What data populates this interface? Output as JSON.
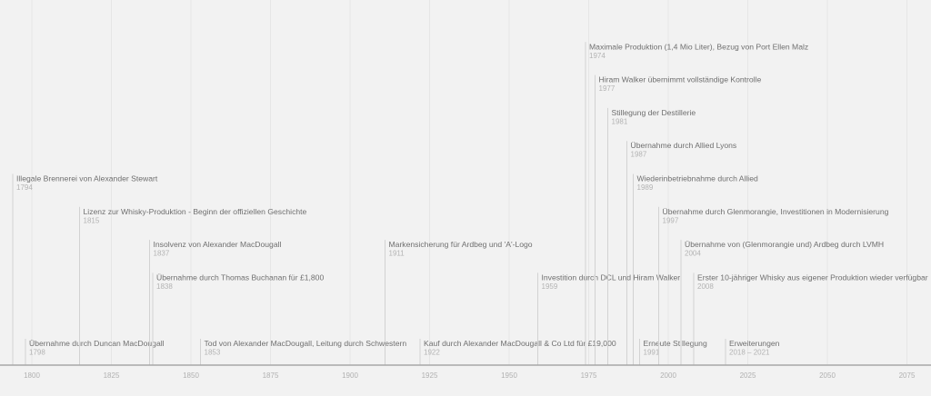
{
  "chart_data": {
    "type": "timeline",
    "xlim": [
      1790,
      2081
    ],
    "ticks": [
      1800,
      1825,
      1850,
      1875,
      1900,
      1925,
      1950,
      1975,
      2000,
      2025,
      2050,
      2075
    ],
    "grid": true,
    "events": [
      {
        "year": 1794,
        "label": "Illegale Brennerei von Alexander Stewart",
        "date_text": "1794",
        "level": 5
      },
      {
        "year": 1798,
        "label": "Übernahme durch Duncan MacDougall",
        "date_text": "1798",
        "level": 0
      },
      {
        "year": 1815,
        "label": "Lizenz zur Whisky-Produktion - Beginn der offiziellen Geschichte",
        "date_text": "1815",
        "level": 4
      },
      {
        "year": 1837,
        "label": "Insolvenz von Alexander MacDougall",
        "date_text": "1837",
        "level": 3
      },
      {
        "year": 1838,
        "label": "Übernahme durch Thomas Buchanan für £1,800",
        "date_text": "1838",
        "level": 2
      },
      {
        "year": 1853,
        "label": "Tod von Alexander MacDougall, Leitung durch Schwestern",
        "date_text": "1853",
        "level": 0
      },
      {
        "year": 1911,
        "label": "Markensicherung für Ardbeg und 'A'-Logo",
        "date_text": "1911",
        "level": 3
      },
      {
        "year": 1922,
        "label": "Kauf durch Alexander MacDougall & Co Ltd für £19,000",
        "date_text": "1922",
        "level": 0
      },
      {
        "year": 1959,
        "label": "Investition durch DCL und Hiram Walker",
        "date_text": "1959",
        "level": 2
      },
      {
        "year": 1974,
        "label": "Maximale Produktion (1,4 Mio Liter), Bezug von Port Ellen Malz",
        "date_text": "1974",
        "level": 9
      },
      {
        "year": 1977,
        "label": "Hiram Walker übernimmt vollständige Kontrolle",
        "date_text": "1977",
        "level": 8
      },
      {
        "year": 1981,
        "label": "Stillegung der Destillerie",
        "date_text": "1981",
        "level": 7
      },
      {
        "year": 1987,
        "label": "Übernahme durch Allied Lyons",
        "date_text": "1987",
        "level": 6
      },
      {
        "year": 1989,
        "label": "Wiederinbetriebnahme durch Allied",
        "date_text": "1989",
        "level": 5
      },
      {
        "year": 1991,
        "label": "Erneute Stillegung",
        "date_text": "1991",
        "level": 0
      },
      {
        "year": 1997,
        "label": "Übernahme durch Glenmorangie, Investitionen in Modernisierung",
        "date_text": "1997",
        "level": 4
      },
      {
        "year": 2004,
        "label": "Übernahme von (Glenmorangie und) Ardbeg durch LVMH",
        "date_text": "2004",
        "level": 3
      },
      {
        "year": 2008,
        "label": "Erster 10-jähriger Whisky aus eigener Produktion wieder verfügbar",
        "date_text": "2008",
        "level": 2
      },
      {
        "year": 2018,
        "label": "Erweiterungen",
        "date_text": "2018 – 2021",
        "level": 0
      }
    ]
  }
}
